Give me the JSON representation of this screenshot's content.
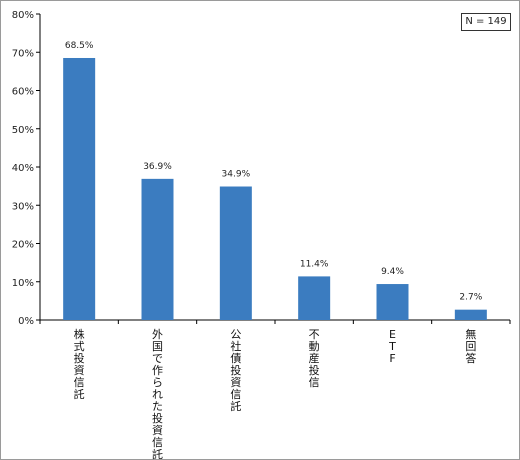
{
  "chart_data": {
    "type": "bar",
    "categories": [
      "株式投資信託",
      "外国で作られた投資信託",
      "公社債投資信託",
      "不動産投信",
      "ETF",
      "無回答"
    ],
    "values": [
      68.5,
      36.9,
      34.9,
      11.4,
      9.4,
      2.7
    ],
    "data_labels": [
      "68.5%",
      "36.9%",
      "34.9%",
      "11.4%",
      "9.4%",
      "2.7%"
    ],
    "y_ticks": [
      "0%",
      "10%",
      "20%",
      "30%",
      "40%",
      "50%",
      "60%",
      "70%",
      "80%"
    ],
    "ylim": [
      0,
      80
    ],
    "grid": false,
    "bar_color": "#3b7cc0",
    "annotation": "N = 149"
  }
}
